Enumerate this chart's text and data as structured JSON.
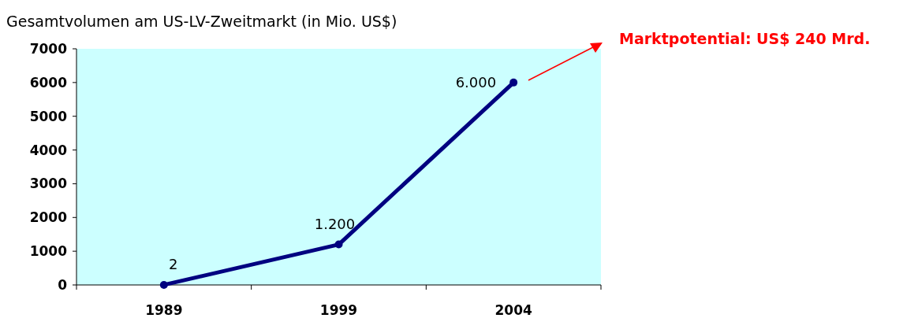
{
  "chart_data": {
    "type": "line",
    "title": "Gesamtvolumen am US-LV-Zweitmarkt (in Mio. US$)",
    "categories": [
      "1989",
      "1999",
      "2004"
    ],
    "series": [
      {
        "color": "#000080",
        "values": [
          2,
          1200,
          6000
        ],
        "value_labels": [
          "2",
          "1.200",
          "6.000"
        ]
      }
    ],
    "ylim": [
      0,
      7000
    ],
    "yticks": [
      0,
      1000,
      2000,
      3000,
      4000,
      5000,
      6000,
      7000
    ],
    "marker": "circle",
    "grid": false,
    "annotations": [
      "Marktpotential: US$ 240 Mrd."
    ]
  }
}
